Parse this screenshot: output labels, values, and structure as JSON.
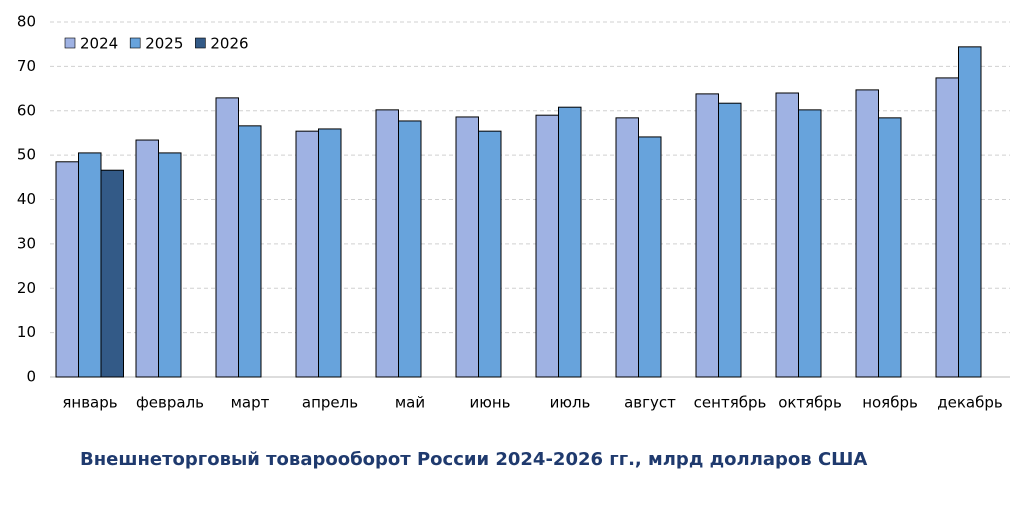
{
  "chart_data": {
    "type": "bar",
    "title": "Внешнеторговый товарооборот  России  2024-2026 гг., млрд долларов  США",
    "categories": [
      "январь",
      "февраль",
      "март",
      "апрель",
      "май",
      "июнь",
      "июль",
      "август",
      "сентябрь",
      "октябрь",
      "ноябрь",
      "декабрь"
    ],
    "series": [
      {
        "name": "2024",
        "color": "#9fb2e3",
        "values": [
          48.5,
          53.4,
          62.9,
          55.4,
          60.2,
          58.6,
          59.0,
          58.4,
          63.8,
          64.0,
          64.7,
          67.4
        ]
      },
      {
        "name": "2025",
        "color": "#67a3dc",
        "values": [
          50.5,
          50.5,
          56.6,
          55.9,
          57.7,
          55.4,
          60.8,
          54.1,
          61.7,
          60.2,
          58.4,
          74.4
        ]
      },
      {
        "name": "2026",
        "color": "#335a87",
        "values": [
          46.6,
          null,
          null,
          null,
          null,
          null,
          null,
          null,
          null,
          null,
          null,
          null
        ]
      }
    ],
    "ylim": [
      0,
      80
    ],
    "yticks": [
      0,
      10,
      20,
      30,
      40,
      50,
      60,
      70,
      80
    ],
    "grid": true,
    "legend": "top-left"
  }
}
